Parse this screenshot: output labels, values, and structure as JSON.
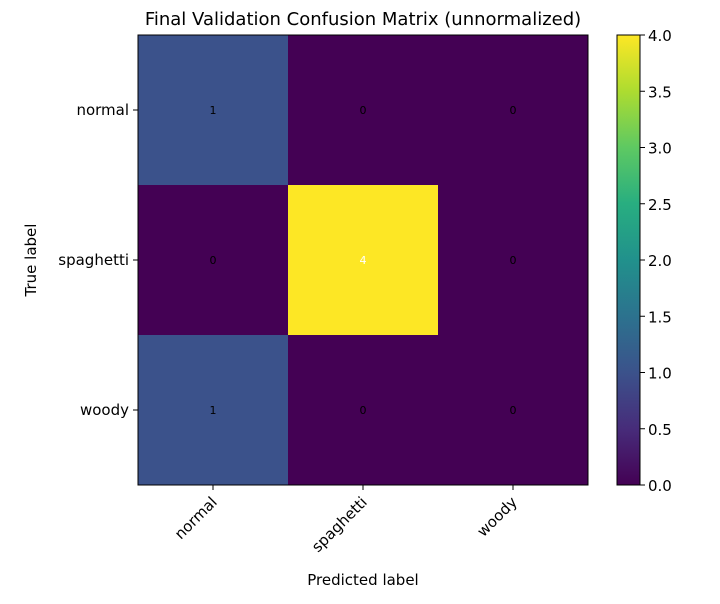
{
  "chart_data": {
    "type": "heatmap",
    "title": "Final Validation Confusion Matrix (unnormalized)",
    "xlabel": "Predicted label",
    "ylabel": "True label",
    "x_categories": [
      "normal",
      "spaghetti",
      "woody"
    ],
    "y_categories": [
      "normal",
      "spaghetti",
      "woody"
    ],
    "values": [
      [
        1,
        0,
        0
      ],
      [
        0,
        4,
        0
      ],
      [
        1,
        0,
        0
      ]
    ],
    "colorbar": {
      "min": 0.0,
      "max": 4.0,
      "ticks": [
        "0.0",
        "0.5",
        "1.0",
        "1.5",
        "2.0",
        "2.5",
        "3.0",
        "3.5",
        "4.0"
      ],
      "colormap": "viridis"
    },
    "colors": {
      "low": "#440154",
      "quarter": "#3b528b",
      "mid": "#21918c",
      "three_quarter": "#5ec962",
      "high": "#fde725",
      "text_dark": "#000000",
      "text_light": "#ffffff"
    }
  }
}
